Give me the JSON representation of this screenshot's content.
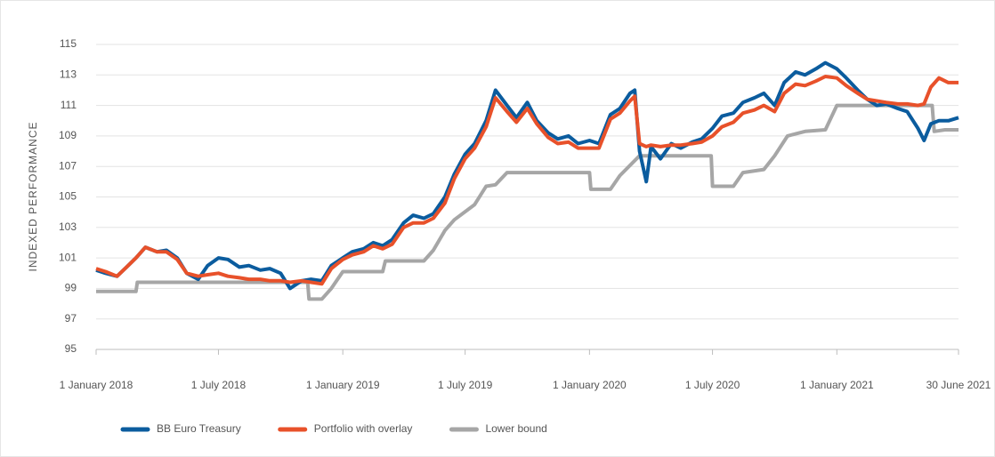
{
  "chart_data": {
    "type": "line",
    "ylabel": "INDEXED PERFORMANCE",
    "xlim": [
      "2018-01-01",
      "2021-06-30"
    ],
    "xticks": [
      {
        "value": "2018-01-01",
        "label": "1 January 2018"
      },
      {
        "value": "2018-07-01",
        "label": "1 July 2018"
      },
      {
        "value": "2019-01-01",
        "label": "1 January 2019"
      },
      {
        "value": "2019-07-01",
        "label": "1 July 2019"
      },
      {
        "value": "2020-01-01",
        "label": "1 January 2020"
      },
      {
        "value": "2020-07-01",
        "label": "1 July 2020"
      },
      {
        "value": "2021-01-01",
        "label": "1 January 2021"
      },
      {
        "value": "2021-06-30",
        "label": "30 June 2021"
      }
    ],
    "ylim": [
      95,
      115
    ],
    "yticks": [
      95,
      97,
      99,
      101,
      103,
      105,
      107,
      109,
      111,
      113,
      115
    ],
    "grid": true,
    "legend": "bottom",
    "series": [
      {
        "name": "BB Euro Treasury",
        "color": "#0b5c9e",
        "x": [
          "2018-01-01",
          "2018-01-15",
          "2018-02-01",
          "2018-02-15",
          "2018-03-01",
          "2018-03-15",
          "2018-04-01",
          "2018-04-15",
          "2018-05-01",
          "2018-05-15",
          "2018-06-01",
          "2018-06-15",
          "2018-07-01",
          "2018-07-15",
          "2018-08-01",
          "2018-08-15",
          "2018-09-01",
          "2018-09-15",
          "2018-10-01",
          "2018-10-15",
          "2018-11-01",
          "2018-11-15",
          "2018-12-01",
          "2018-12-15",
          "2019-01-01",
          "2019-01-15",
          "2019-02-01",
          "2019-02-15",
          "2019-03-01",
          "2019-03-15",
          "2019-04-01",
          "2019-04-15",
          "2019-05-01",
          "2019-05-15",
          "2019-06-01",
          "2019-06-15",
          "2019-07-01",
          "2019-07-15",
          "2019-08-01",
          "2019-08-15",
          "2019-09-01",
          "2019-09-15",
          "2019-10-01",
          "2019-10-15",
          "2019-11-01",
          "2019-11-15",
          "2019-12-01",
          "2019-12-15",
          "2020-01-01",
          "2020-01-15",
          "2020-02-01",
          "2020-02-15",
          "2020-03-01",
          "2020-03-08",
          "2020-03-15",
          "2020-03-25",
          "2020-04-01",
          "2020-04-15",
          "2020-05-01",
          "2020-05-15",
          "2020-06-01",
          "2020-06-15",
          "2020-07-01",
          "2020-07-15",
          "2020-08-01",
          "2020-08-15",
          "2020-09-01",
          "2020-09-15",
          "2020-10-01",
          "2020-10-15",
          "2020-11-01",
          "2020-11-15",
          "2020-12-01",
          "2020-12-15",
          "2021-01-01",
          "2021-01-15",
          "2021-02-01",
          "2021-02-15",
          "2021-03-01",
          "2021-03-15",
          "2021-04-01",
          "2021-04-15",
          "2021-05-01",
          "2021-05-10",
          "2021-05-20",
          "2021-06-01",
          "2021-06-15",
          "2021-06-30"
        ],
        "values": [
          100.2,
          100.0,
          99.8,
          100.4,
          101.0,
          101.7,
          101.4,
          101.5,
          101.0,
          100.0,
          99.6,
          100.5,
          101.0,
          100.9,
          100.4,
          100.5,
          100.2,
          100.3,
          100.0,
          99.0,
          99.5,
          99.6,
          99.5,
          100.5,
          101.0,
          101.4,
          101.6,
          102.0,
          101.8,
          102.2,
          103.3,
          103.8,
          103.6,
          103.9,
          105.0,
          106.5,
          107.8,
          108.5,
          110.0,
          112.0,
          111.0,
          110.2,
          111.2,
          110.0,
          109.2,
          108.8,
          109.0,
          108.5,
          108.7,
          108.5,
          110.4,
          110.8,
          111.8,
          112.0,
          108.0,
          106.0,
          108.3,
          107.5,
          108.5,
          108.2,
          108.6,
          108.8,
          109.5,
          110.3,
          110.5,
          111.2,
          111.5,
          111.8,
          111.0,
          112.5,
          113.2,
          113.0,
          113.4,
          113.8,
          113.4,
          112.8,
          112.0,
          111.4,
          111.0,
          111.1,
          110.8,
          110.6,
          109.5,
          108.7,
          109.8,
          110.0,
          110.0,
          110.2
        ]
      },
      {
        "name": "Portfolio with overlay",
        "color": "#e8512a",
        "x": [
          "2018-01-01",
          "2018-01-15",
          "2018-02-01",
          "2018-02-15",
          "2018-03-01",
          "2018-03-15",
          "2018-04-01",
          "2018-04-15",
          "2018-05-01",
          "2018-05-15",
          "2018-06-01",
          "2018-06-15",
          "2018-07-01",
          "2018-07-15",
          "2018-08-01",
          "2018-08-15",
          "2018-09-01",
          "2018-09-15",
          "2018-10-01",
          "2018-10-15",
          "2018-11-01",
          "2018-11-15",
          "2018-12-01",
          "2018-12-15",
          "2019-01-01",
          "2019-01-15",
          "2019-02-01",
          "2019-02-15",
          "2019-03-01",
          "2019-03-15",
          "2019-04-01",
          "2019-04-15",
          "2019-05-01",
          "2019-05-15",
          "2019-06-01",
          "2019-06-15",
          "2019-07-01",
          "2019-07-15",
          "2019-08-01",
          "2019-08-15",
          "2019-09-01",
          "2019-09-15",
          "2019-10-01",
          "2019-10-15",
          "2019-11-01",
          "2019-11-15",
          "2019-12-01",
          "2019-12-15",
          "2020-01-01",
          "2020-01-15",
          "2020-02-01",
          "2020-02-15",
          "2020-03-01",
          "2020-03-08",
          "2020-03-15",
          "2020-03-25",
          "2020-04-01",
          "2020-04-15",
          "2020-05-01",
          "2020-05-15",
          "2020-06-01",
          "2020-06-15",
          "2020-07-01",
          "2020-07-15",
          "2020-08-01",
          "2020-08-15",
          "2020-09-01",
          "2020-09-15",
          "2020-10-01",
          "2020-10-15",
          "2020-11-01",
          "2020-11-15",
          "2020-12-01",
          "2020-12-15",
          "2021-01-01",
          "2021-01-15",
          "2021-02-01",
          "2021-02-15",
          "2021-03-01",
          "2021-03-15",
          "2021-04-01",
          "2021-04-15",
          "2021-05-01",
          "2021-05-10",
          "2021-05-20",
          "2021-06-01",
          "2021-06-15",
          "2021-06-30"
        ],
        "values": [
          100.3,
          100.1,
          99.8,
          100.4,
          101.0,
          101.7,
          101.4,
          101.4,
          100.9,
          100.0,
          99.8,
          99.9,
          100.0,
          99.8,
          99.7,
          99.6,
          99.6,
          99.5,
          99.5,
          99.4,
          99.5,
          99.4,
          99.3,
          100.3,
          100.9,
          101.2,
          101.4,
          101.8,
          101.6,
          101.9,
          103.0,
          103.3,
          103.3,
          103.6,
          104.6,
          106.2,
          107.5,
          108.2,
          109.6,
          111.5,
          110.6,
          109.9,
          110.8,
          109.8,
          108.9,
          108.5,
          108.6,
          108.2,
          108.2,
          108.2,
          110.1,
          110.5,
          111.3,
          111.6,
          108.5,
          108.3,
          108.4,
          108.3,
          108.4,
          108.4,
          108.5,
          108.6,
          109.0,
          109.6,
          109.9,
          110.5,
          110.7,
          111.0,
          110.6,
          111.8,
          112.4,
          112.3,
          112.6,
          112.9,
          112.8,
          112.3,
          111.8,
          111.4,
          111.3,
          111.2,
          111.1,
          111.1,
          111.0,
          111.1,
          112.2,
          112.8,
          112.5,
          112.5
        ]
      },
      {
        "name": "Lower bound",
        "color": "#a6a6a6",
        "x": [
          "2018-01-01",
          "2018-03-01",
          "2018-03-03",
          "2018-11-10",
          "2018-11-12",
          "2018-12-01",
          "2018-12-15",
          "2019-01-01",
          "2019-03-01",
          "2019-03-05",
          "2019-05-01",
          "2019-05-15",
          "2019-06-01",
          "2019-06-15",
          "2019-07-15",
          "2019-08-01",
          "2019-08-15",
          "2019-09-01",
          "2020-01-01",
          "2020-01-03",
          "2020-02-01",
          "2020-02-15",
          "2020-03-15",
          "2020-06-29",
          "2020-07-01",
          "2020-08-01",
          "2020-08-15",
          "2020-09-15",
          "2020-10-01",
          "2020-10-20",
          "2020-11-15",
          "2020-12-15",
          "2021-01-01",
          "2021-05-22",
          "2021-05-25",
          "2021-06-10",
          "2021-06-30"
        ],
        "values": [
          98.8,
          98.8,
          99.4,
          99.4,
          98.3,
          98.3,
          99.0,
          100.1,
          100.1,
          100.8,
          100.8,
          101.5,
          102.8,
          103.5,
          104.5,
          105.7,
          105.8,
          106.6,
          106.6,
          105.5,
          105.5,
          106.4,
          107.7,
          107.7,
          105.7,
          105.7,
          106.6,
          106.8,
          107.7,
          109.0,
          109.3,
          109.4,
          111.0,
          111.0,
          109.3,
          109.4,
          109.4
        ]
      }
    ]
  }
}
